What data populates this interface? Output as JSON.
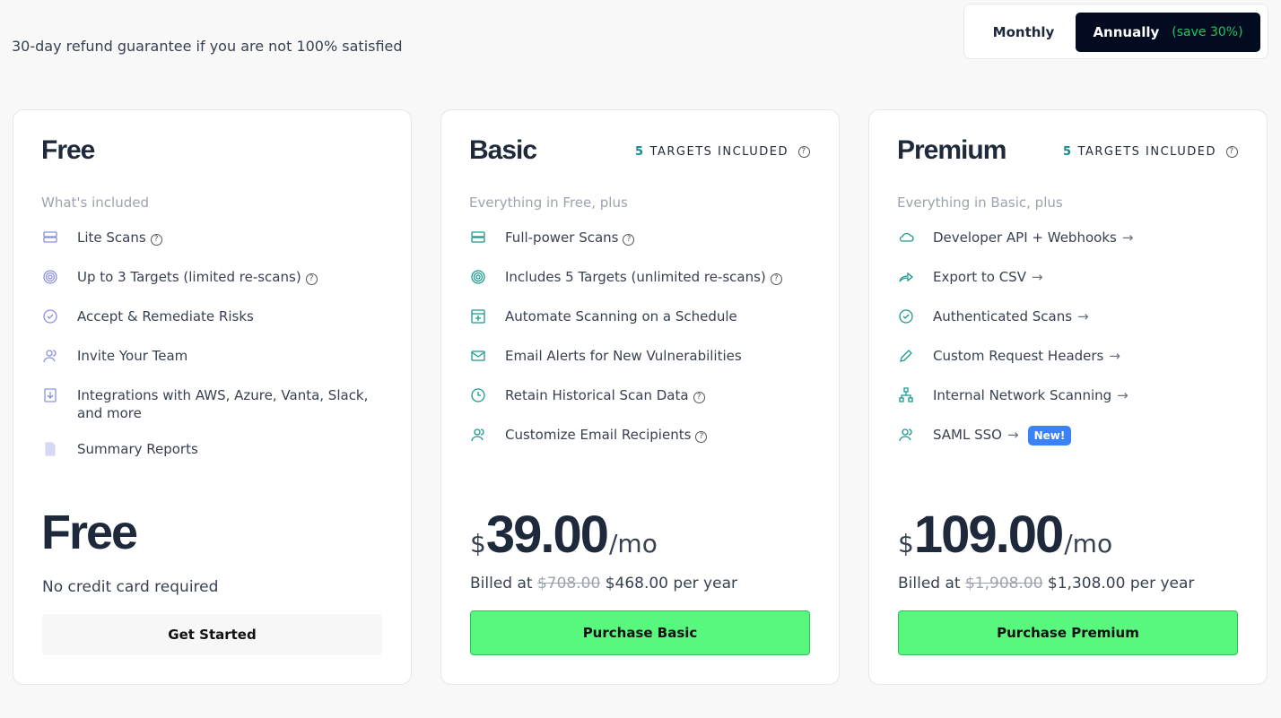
{
  "header": {
    "refund_text": "30-day refund guarantee if you are not 100% satisfied"
  },
  "billing_toggle": {
    "monthly": "Monthly",
    "annually": "Annually",
    "save": "(save 30%)",
    "selected": "Annually"
  },
  "colors": {
    "accent_green": "#58f77e",
    "dark": "#020b1f",
    "free_icon": "#8b8fe0",
    "paid_icon": "#1a9a8e",
    "new_badge": "#3b82f6"
  },
  "plans": [
    {
      "id": "free",
      "title": "Free",
      "subtitle": "What's included",
      "icon_color": "#8b8fe0",
      "features": [
        {
          "label": "Lite Scans",
          "icon": "server-icon",
          "help": true
        },
        {
          "label": "Up to 3 Targets (limited re-scans)",
          "icon": "target-icon",
          "help": true
        },
        {
          "label": "Accept & Remediate Risks",
          "icon": "check-circle-icon"
        },
        {
          "label": "Invite Your Team",
          "icon": "users-icon"
        },
        {
          "label": "Integrations with AWS, Azure, Vanta, Slack, and more",
          "icon": "download-icon"
        },
        {
          "label": "Summary Reports",
          "icon": "document-icon"
        }
      ],
      "price_label": "Free",
      "note": "No credit card required",
      "cta": "Get Started"
    },
    {
      "id": "basic",
      "title": "Basic",
      "targets_count": "5",
      "targets_label": "TARGETS INCLUDED",
      "subtitle": "Everything in Free, plus",
      "icon_color": "#1a9a8e",
      "features": [
        {
          "label": "Full-power Scans",
          "icon": "server-icon",
          "help": true
        },
        {
          "label": "Includes 5 Targets (unlimited re-scans)",
          "icon": "target-icon",
          "help": true
        },
        {
          "label": "Automate Scanning on a Schedule",
          "icon": "calendar-plus-icon"
        },
        {
          "label": "Email Alerts for New Vulnerabilities",
          "icon": "mail-icon"
        },
        {
          "label": "Retain Historical Scan Data",
          "icon": "clock-icon",
          "help": true
        },
        {
          "label": "Customize Email Recipients",
          "icon": "users-icon",
          "help": true
        }
      ],
      "currency": "$",
      "amount": "39.00",
      "period": "/mo",
      "billed_prefix": "Billed at",
      "original": "$708.00",
      "billed": "$468.00 per year",
      "cta": "Purchase Basic"
    },
    {
      "id": "premium",
      "title": "Premium",
      "targets_count": "5",
      "targets_label": "TARGETS INCLUDED",
      "subtitle": "Everything in Basic, plus",
      "icon_color": "#1a9a8e",
      "features": [
        {
          "label": "Developer API + Webhooks",
          "icon": "cloud-icon",
          "arrow": true
        },
        {
          "label": "Export to CSV",
          "icon": "share-icon",
          "arrow": true
        },
        {
          "label": "Authenticated Scans",
          "icon": "check-circle-icon",
          "arrow": true
        },
        {
          "label": "Custom Request Headers",
          "icon": "pencil-icon",
          "arrow": true
        },
        {
          "label": "Internal Network Scanning",
          "icon": "network-icon",
          "arrow": true
        },
        {
          "label": "SAML SSO",
          "icon": "users-icon",
          "arrow": true,
          "badge": "New!"
        }
      ],
      "currency": "$",
      "amount": "109.00",
      "period": "/mo",
      "billed_prefix": "Billed at",
      "original": "$1,908.00",
      "billed": "$1,308.00 per year",
      "cta": "Purchase Premium"
    }
  ]
}
